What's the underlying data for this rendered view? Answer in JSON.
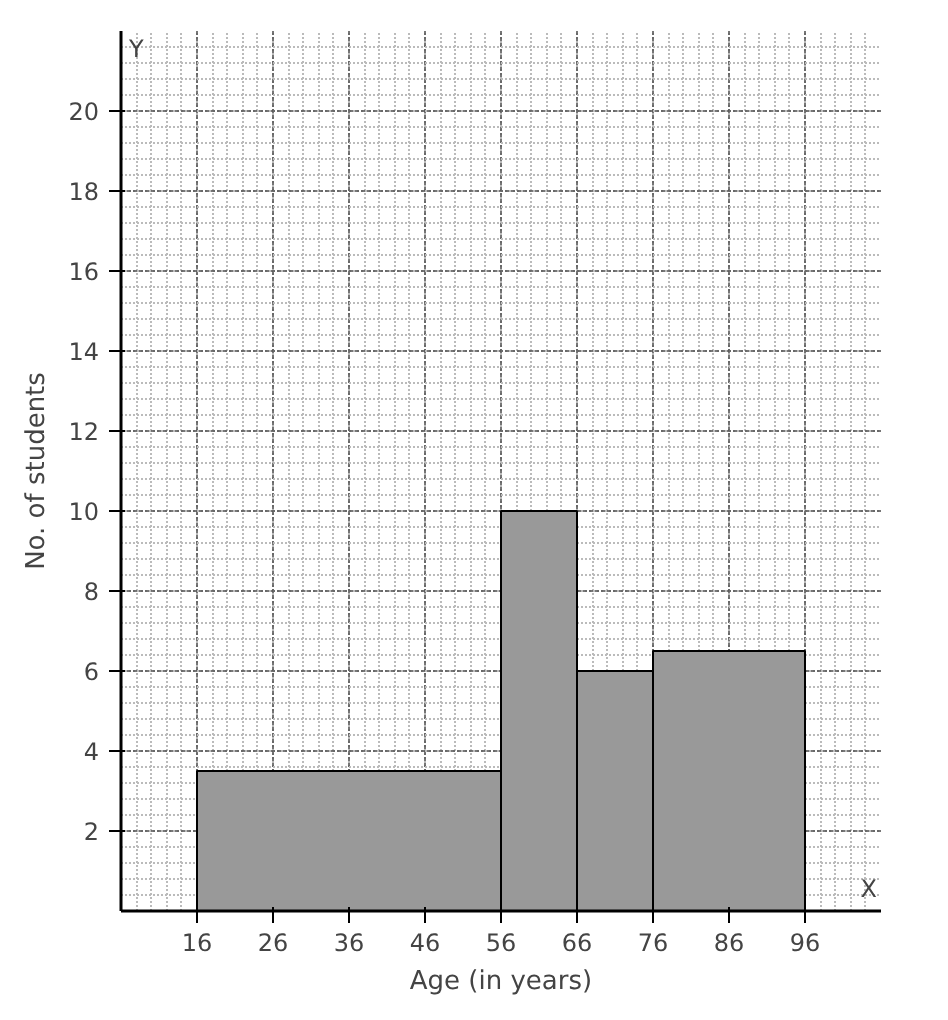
{
  "chart_data": {
    "type": "histogram",
    "xlabel": "Age (in years)",
    "ylabel": "No. of students",
    "bins": [
      16,
      56,
      66,
      76,
      96
    ],
    "values": [
      3.5,
      10,
      6,
      6.5
    ],
    "color": "#999999",
    "xlim": [
      6,
      106
    ],
    "ylim": [
      0,
      22
    ],
    "xticks": [
      16,
      26,
      36,
      46,
      56,
      66,
      76,
      86,
      96
    ],
    "yticks": [
      2,
      4,
      6,
      8,
      10,
      12,
      14,
      16,
      18,
      20
    ],
    "grid": true,
    "annotations": [
      "X",
      "Y"
    ]
  }
}
